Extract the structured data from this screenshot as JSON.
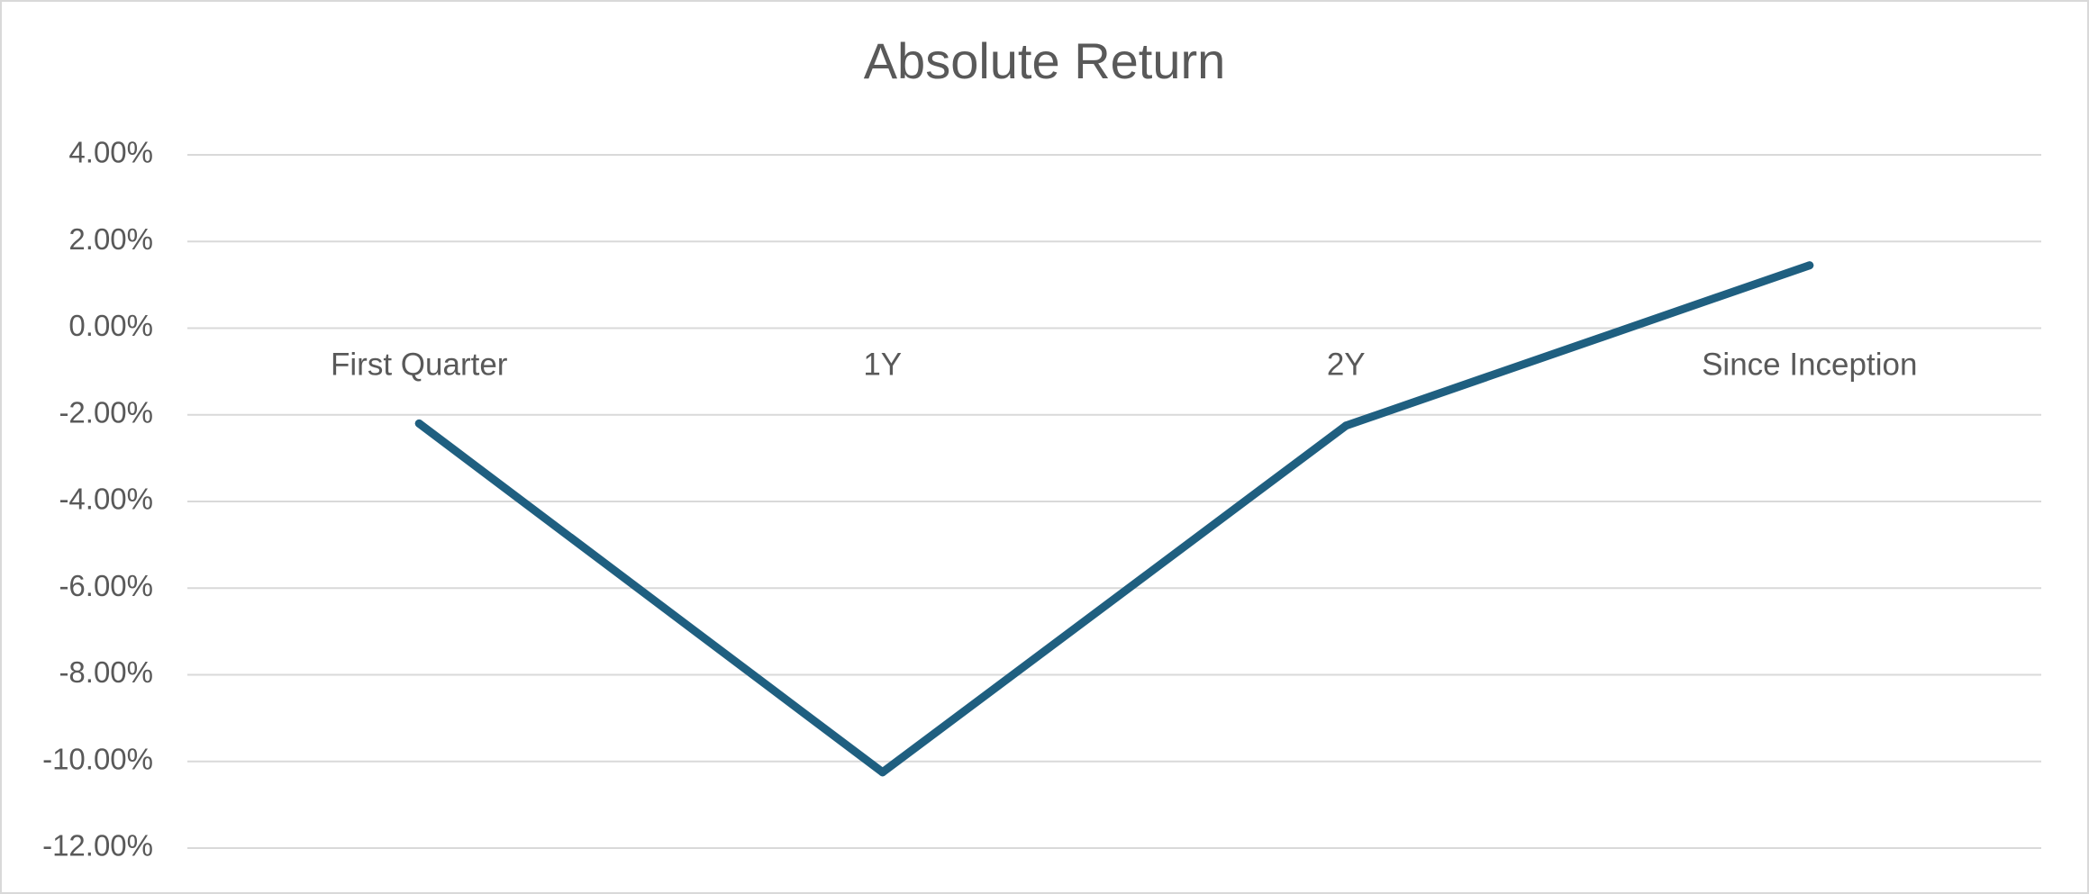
{
  "chart_data": {
    "type": "line",
    "title": "Absolute Return",
    "xlabel": "",
    "ylabel": "",
    "categories": [
      "First Quarter",
      "1Y",
      "2Y",
      "Since Inception"
    ],
    "series": [
      {
        "values": [
          -2.2,
          -10.25,
          -2.25,
          1.45
        ],
        "color": "#1f5f80"
      }
    ],
    "y_ticks": [
      4,
      2,
      0,
      -2,
      -4,
      -6,
      -8,
      -10,
      -12
    ],
    "y_tick_labels": [
      "4.00%",
      "2.00%",
      "0.00%",
      "-2.00%",
      "-4.00%",
      "-6.00%",
      "-8.00%",
      "-10.00%",
      "-12.00%"
    ],
    "ylim": [
      -12,
      4
    ],
    "y_unit": "%",
    "grid": true,
    "legend": "none",
    "category_labels_position": "at zero line",
    "gridline_color": "#d9d9d9",
    "text_color": "#595959"
  }
}
